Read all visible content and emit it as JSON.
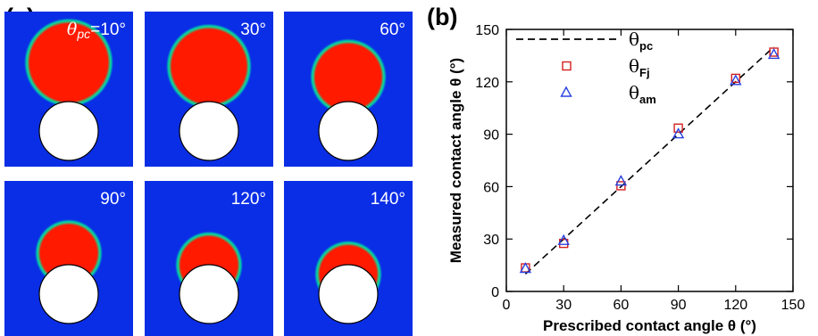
{
  "panel_a": {
    "label": "(a)",
    "colors": {
      "background": "#0a2ee6",
      "droplet": "#ff1a00",
      "halo": "#00e0a0",
      "particle": "#ffffff"
    },
    "tiles": [
      {
        "label_symbol": "θ",
        "label_sub": "pc",
        "label_value": "=10°",
        "contact_angle": 10
      },
      {
        "label_value": "30°",
        "contact_angle": 30
      },
      {
        "label_value": "60°",
        "contact_angle": 60
      },
      {
        "label_value": "90°",
        "contact_angle": 90
      },
      {
        "label_value": "120°",
        "contact_angle": 120
      },
      {
        "label_value": "140°",
        "contact_angle": 140
      }
    ]
  },
  "panel_b": {
    "label": "(b)"
  },
  "chart_data": {
    "type": "scatter",
    "xlabel": "Prescribed contact angle θ (°)",
    "ylabel": "Measured contact angle θ (°)",
    "xlim": [
      0,
      150
    ],
    "ylim": [
      0,
      150
    ],
    "xticks": [
      0,
      30,
      60,
      90,
      120,
      150
    ],
    "yticks": [
      0,
      30,
      60,
      90,
      120,
      150
    ],
    "grid": false,
    "legend_position": "top-left",
    "series": [
      {
        "name": "θpc",
        "symbol": "θ",
        "sub": "pc",
        "style": "dashed-line",
        "color": "#000000",
        "x": [
          10,
          140
        ],
        "y": [
          10,
          140
        ]
      },
      {
        "name": "θFj",
        "symbol": "θ",
        "sub": "Fj",
        "style": "square",
        "color": "#d62020",
        "x": [
          10,
          30,
          60,
          90,
          120,
          140
        ],
        "y": [
          13.5,
          27.5,
          60.5,
          93.5,
          122,
          137
        ]
      },
      {
        "name": "θam",
        "symbol": "θ",
        "sub": "am",
        "style": "triangle",
        "color": "#2840e0",
        "x": [
          10,
          30,
          60,
          90,
          120,
          140
        ],
        "y": [
          13,
          29,
          63,
          90,
          120.5,
          135.5
        ]
      }
    ]
  }
}
